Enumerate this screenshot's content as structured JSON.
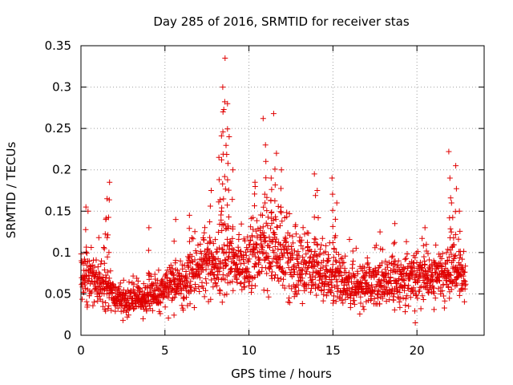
{
  "chart_data": {
    "type": "scatter",
    "title": "Day 285 of 2016, SRMTID for receiver stas",
    "xlabel": "GPS time / hours",
    "ylabel": "SRMTID / TECUs",
    "xlim": [
      0,
      24
    ],
    "ylim": [
      0,
      0.35
    ],
    "xticks": [
      0,
      5,
      10,
      15,
      20
    ],
    "xtick_labels": [
      "0",
      "5",
      "10",
      "15",
      "20"
    ],
    "yticks": [
      0,
      0.05,
      0.1,
      0.15,
      0.2,
      0.25,
      0.3,
      0.35
    ],
    "ytick_labels": [
      "0",
      "0.05",
      "0.1",
      "0.15",
      "0.2",
      "0.25",
      "0.3",
      "0.35"
    ],
    "grid": true,
    "marker": "+",
    "color": "#e00000",
    "x_end": 22.9,
    "baseline_points": 1900,
    "trend": [
      [
        0.0,
        0.07
      ],
      [
        0.5,
        0.072
      ],
      [
        1.0,
        0.064
      ],
      [
        1.5,
        0.058
      ],
      [
        2.0,
        0.046
      ],
      [
        2.5,
        0.04
      ],
      [
        3.0,
        0.041
      ],
      [
        3.5,
        0.043
      ],
      [
        4.0,
        0.046
      ],
      [
        4.5,
        0.05
      ],
      [
        5.0,
        0.054
      ],
      [
        5.5,
        0.058
      ],
      [
        6.0,
        0.064
      ],
      [
        6.5,
        0.072
      ],
      [
        7.0,
        0.079
      ],
      [
        7.5,
        0.086
      ],
      [
        8.0,
        0.09
      ],
      [
        8.5,
        0.092
      ],
      [
        9.0,
        0.09
      ],
      [
        9.5,
        0.082
      ],
      [
        10.0,
        0.09
      ],
      [
        10.5,
        0.102
      ],
      [
        11.0,
        0.108
      ],
      [
        11.5,
        0.104
      ],
      [
        12.0,
        0.094
      ],
      [
        12.5,
        0.086
      ],
      [
        13.0,
        0.08
      ],
      [
        13.5,
        0.076
      ],
      [
        14.0,
        0.074
      ],
      [
        14.5,
        0.072
      ],
      [
        15.0,
        0.07
      ],
      [
        15.5,
        0.066
      ],
      [
        16.0,
        0.062
      ],
      [
        16.5,
        0.06
      ],
      [
        17.0,
        0.06
      ],
      [
        17.5,
        0.061
      ],
      [
        18.0,
        0.062
      ],
      [
        18.5,
        0.064
      ],
      [
        19.0,
        0.066
      ],
      [
        19.5,
        0.068
      ],
      [
        20.0,
        0.068
      ],
      [
        20.5,
        0.068
      ],
      [
        21.0,
        0.068
      ],
      [
        21.5,
        0.07
      ],
      [
        22.0,
        0.08
      ],
      [
        22.5,
        0.075
      ],
      [
        22.9,
        0.06
      ]
    ],
    "spikes": [
      {
        "x": 0.3,
        "y": 0.155,
        "n": 3
      },
      {
        "x": 0.4,
        "y": 0.15,
        "n": 2
      },
      {
        "x": 1.45,
        "y": 0.14,
        "n": 4
      },
      {
        "x": 1.55,
        "y": 0.165,
        "n": 4
      },
      {
        "x": 1.65,
        "y": 0.185,
        "n": 5
      },
      {
        "x": 4.0,
        "y": 0.13,
        "n": 3
      },
      {
        "x": 5.6,
        "y": 0.14,
        "n": 3
      },
      {
        "x": 6.5,
        "y": 0.145,
        "n": 4
      },
      {
        "x": 7.7,
        "y": 0.175,
        "n": 4
      },
      {
        "x": 8.2,
        "y": 0.215,
        "n": 4
      },
      {
        "x": 8.4,
        "y": 0.27,
        "n": 5
      },
      {
        "x": 8.5,
        "y": 0.3,
        "n": 6
      },
      {
        "x": 8.6,
        "y": 0.335,
        "n": 4
      },
      {
        "x": 8.7,
        "y": 0.28,
        "n": 5
      },
      {
        "x": 8.8,
        "y": 0.24,
        "n": 4
      },
      {
        "x": 9.0,
        "y": 0.2,
        "n": 3
      },
      {
        "x": 10.3,
        "y": 0.185,
        "n": 5
      },
      {
        "x": 10.8,
        "y": 0.262,
        "n": 1
      },
      {
        "x": 11.0,
        "y": 0.23,
        "n": 5
      },
      {
        "x": 11.3,
        "y": 0.19,
        "n": 5
      },
      {
        "x": 11.5,
        "y": 0.268,
        "n": 1
      },
      {
        "x": 11.6,
        "y": 0.22,
        "n": 5
      },
      {
        "x": 11.9,
        "y": 0.2,
        "n": 4
      },
      {
        "x": 13.9,
        "y": 0.195,
        "n": 4
      },
      {
        "x": 14.1,
        "y": 0.175,
        "n": 3
      },
      {
        "x": 15.0,
        "y": 0.19,
        "n": 5
      },
      {
        "x": 15.2,
        "y": 0.16,
        "n": 4
      },
      {
        "x": 17.8,
        "y": 0.125,
        "n": 3
      },
      {
        "x": 18.7,
        "y": 0.135,
        "n": 3
      },
      {
        "x": 20.5,
        "y": 0.13,
        "n": 3
      },
      {
        "x": 21.9,
        "y": 0.222,
        "n": 1
      },
      {
        "x": 21.95,
        "y": 0.19,
        "n": 4
      },
      {
        "x": 22.1,
        "y": 0.16,
        "n": 4
      },
      {
        "x": 22.3,
        "y": 0.205,
        "n": 4
      },
      {
        "x": 22.5,
        "y": 0.15,
        "n": 3
      }
    ],
    "low_outliers": [
      {
        "x": 19.9,
        "y": 0.015
      },
      {
        "x": 2.5,
        "y": 0.018
      },
      {
        "x": 3.7,
        "y": 0.02
      }
    ]
  }
}
